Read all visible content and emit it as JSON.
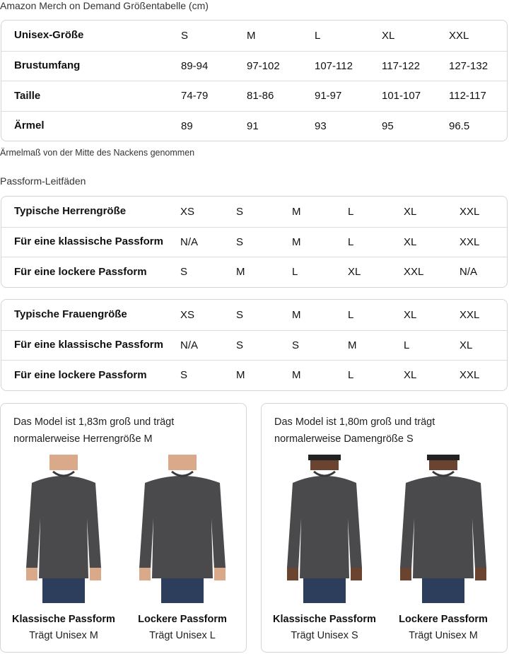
{
  "title": "Amazon Merch on Demand Größentabelle (cm)",
  "size_table": {
    "rows": [
      [
        "Unisex-Größe",
        "S",
        "M",
        "L",
        "XL",
        "XXL"
      ],
      [
        "Brustumfang",
        "89-94",
        "97-102",
        "107-112",
        "117-122",
        "127-132"
      ],
      [
        "Taille",
        "74-79",
        "81-86",
        "91-97",
        "101-107",
        "112-117"
      ],
      [
        "Ärmel",
        "89",
        "91",
        "93",
        "95",
        "96.5"
      ]
    ]
  },
  "note": "Ärmelmaß von der Mitte des Nackens genommen",
  "fit_heading": "Passform-Leitfäden",
  "men_table": {
    "rows": [
      [
        "Typische Herrengröße",
        "XS",
        "S",
        "M",
        "L",
        "XL",
        "XXL"
      ],
      [
        "Für eine klassische Passform",
        "N/A",
        "S",
        "M",
        "L",
        "XL",
        "XXL"
      ],
      [
        "Für eine lockere Passform",
        "S",
        "M",
        "L",
        "XL",
        "XXL",
        "N/A"
      ]
    ]
  },
  "women_table": {
    "rows": [
      [
        "Typische Frauengröße",
        "XS",
        "S",
        "M",
        "L",
        "XL",
        "XXL"
      ],
      [
        "Für eine klassische Passform",
        "N/A",
        "S",
        "S",
        "M",
        "L",
        "XL"
      ],
      [
        "Für eine lockere Passform",
        "S",
        "M",
        "M",
        "L",
        "XL",
        "XXL"
      ]
    ]
  },
  "cards": [
    {
      "caption": "Das Model ist 1,83m groß und trägt normalerweise Herrengröße M",
      "fits": [
        {
          "name": "Klassische Passform",
          "wears": "Trägt Unisex M"
        },
        {
          "name": "Lockere Passform",
          "wears": "Trägt Unisex L"
        }
      ]
    },
    {
      "caption": "Das Model ist 1,80m groß und trägt normalerweise Damengröße S",
      "fits": [
        {
          "name": "Klassische Passform",
          "wears": "Trägt Unisex S"
        },
        {
          "name": "Lockere Passform",
          "wears": "Trägt Unisex M"
        }
      ]
    }
  ],
  "colors": {
    "sweater": "#4a4a4c",
    "jeans": "#2c3e5c",
    "skin_men": "#d9a98a",
    "skin_women": "#6b4431"
  }
}
